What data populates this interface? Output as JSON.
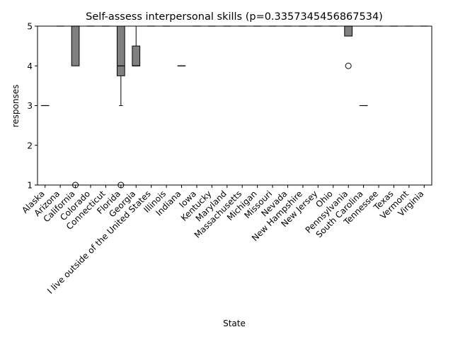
{
  "chart_data": {
    "type": "box",
    "title": "Self-assess interpersonal skills (p=0.3357345456867534)",
    "xlabel": "State",
    "ylabel": "responses",
    "ylim": [
      1,
      5
    ],
    "yticks": [
      1,
      2,
      3,
      4,
      5
    ],
    "grid": false,
    "legend": "none",
    "colors": {
      "box_fill": "#808080",
      "line": "#000000"
    },
    "categories": [
      "Alaska",
      "Arizona",
      "California",
      "Colorado",
      "Connecticut",
      "Florida",
      "Georgia",
      "I live outside of the United States",
      "Illinois",
      "Indiana",
      "Iowa",
      "Kentucky",
      "Maryland",
      "Massachusetts",
      "Michigan",
      "Missouri",
      "Nevada",
      "New Hampshire",
      "New Jersey",
      "Ohio",
      "Pennsylvania",
      "South Carolina",
      "Tennessee",
      "Texas",
      "Vermont",
      "Virginia"
    ],
    "boxes": [
      {
        "q1": 3,
        "median": 3,
        "q3": 3,
        "whislo": 3,
        "whishi": 3,
        "fliers": []
      },
      {
        "q1": 5,
        "median": 5,
        "q3": 5,
        "whislo": 5,
        "whishi": 5,
        "fliers": []
      },
      {
        "q1": 4,
        "median": 5,
        "q3": 5,
        "whislo": 4,
        "whishi": 5,
        "fliers": [
          1
        ]
      },
      {
        "q1": 5,
        "median": 5,
        "q3": 5,
        "whislo": 5,
        "whishi": 5,
        "fliers": []
      },
      {
        "q1": 5,
        "median": 5,
        "q3": 5,
        "whislo": 5,
        "whishi": 5,
        "fliers": []
      },
      {
        "q1": 3.75,
        "median": 4,
        "q3": 5,
        "whislo": 3,
        "whishi": 5,
        "fliers": [
          1
        ]
      },
      {
        "q1": 4,
        "median": 4,
        "q3": 4.5,
        "whislo": 4,
        "whishi": 5,
        "fliers": []
      },
      {
        "q1": 5,
        "median": 5,
        "q3": 5,
        "whislo": 5,
        "whishi": 5,
        "fliers": []
      },
      {
        "q1": 5,
        "median": 5,
        "q3": 5,
        "whislo": 5,
        "whishi": 5,
        "fliers": []
      },
      {
        "q1": 4,
        "median": 4,
        "q3": 4,
        "whislo": 4,
        "whishi": 4,
        "fliers": []
      },
      {
        "q1": 5,
        "median": 5,
        "q3": 5,
        "whislo": 5,
        "whishi": 5,
        "fliers": []
      },
      {
        "q1": 5,
        "median": 5,
        "q3": 5,
        "whislo": 5,
        "whishi": 5,
        "fliers": []
      },
      {
        "q1": 5,
        "median": 5,
        "q3": 5,
        "whislo": 5,
        "whishi": 5,
        "fliers": []
      },
      {
        "q1": 5,
        "median": 5,
        "q3": 5,
        "whislo": 5,
        "whishi": 5,
        "fliers": []
      },
      {
        "q1": 5,
        "median": 5,
        "q3": 5,
        "whislo": 5,
        "whishi": 5,
        "fliers": []
      },
      {
        "q1": 5,
        "median": 5,
        "q3": 5,
        "whislo": 5,
        "whishi": 5,
        "fliers": []
      },
      {
        "q1": 5,
        "median": 5,
        "q3": 5,
        "whislo": 5,
        "whishi": 5,
        "fliers": []
      },
      {
        "q1": 5,
        "median": 5,
        "q3": 5,
        "whislo": 5,
        "whishi": 5,
        "fliers": []
      },
      {
        "q1": 5,
        "median": 5,
        "q3": 5,
        "whislo": 5,
        "whishi": 5,
        "fliers": []
      },
      {
        "q1": 5,
        "median": 5,
        "q3": 5,
        "whislo": 5,
        "whishi": 5,
        "fliers": []
      },
      {
        "q1": 4.75,
        "median": 5,
        "q3": 5,
        "whislo": 4.75,
        "whishi": 5,
        "fliers": [
          4
        ]
      },
      {
        "q1": 3,
        "median": 3,
        "q3": 3,
        "whislo": 3,
        "whishi": 3,
        "fliers": []
      },
      {
        "q1": 5,
        "median": 5,
        "q3": 5,
        "whislo": 5,
        "whishi": 5,
        "fliers": []
      },
      {
        "q1": 5,
        "median": 5,
        "q3": 5,
        "whislo": 5,
        "whishi": 5,
        "fliers": []
      },
      {
        "q1": 5,
        "median": 5,
        "q3": 5,
        "whislo": 5,
        "whishi": 5,
        "fliers": []
      },
      {
        "q1": 5,
        "median": 5,
        "q3": 5,
        "whislo": 5,
        "whishi": 5,
        "fliers": []
      }
    ]
  }
}
